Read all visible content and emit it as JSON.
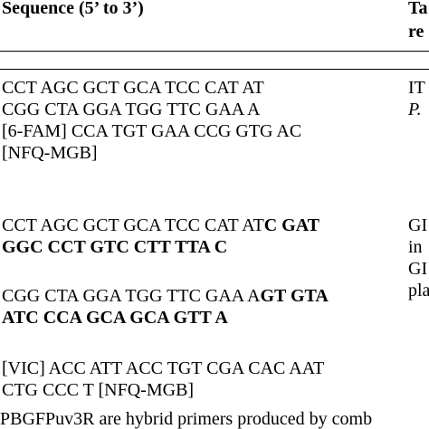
{
  "header": {
    "sequence_col": "Sequence (5’ to 3’)",
    "target_col_line1": "Ta",
    "target_col_line2": "re"
  },
  "group1": {
    "lines": [
      "CCT AGC GCT GCA TCC CAT AT",
      "CGG CTA GGA TGG TTC GAA A",
      "[6-FAM] CCA TGT GAA CCG GTG AC",
      "[NFQ-MGB]"
    ],
    "side": [
      "IT",
      "P."
    ]
  },
  "group2": {
    "line1_normal": "CCT AGC GCT GCA TCC CAT AT",
    "line1_bold": "C GAT",
    "line2_bold": "GGC CCT GTC CTT TTA C",
    "line3_normal": "CGG CTA GGA TGG TTC GAA A",
    "line3_bold": "GT GTA",
    "line4_bold": "ATC CCA GCA GCA GTT A",
    "line5": "[VIC] ACC ATT ACC TGT CGA CAC AAT",
    "line6": "CTG CCC T [NFQ-MGB]",
    "side": [
      "GI",
      "in",
      "GI",
      "pla"
    ]
  },
  "footnote": "PBGFPuv3R are hybrid primers produced by comb"
}
